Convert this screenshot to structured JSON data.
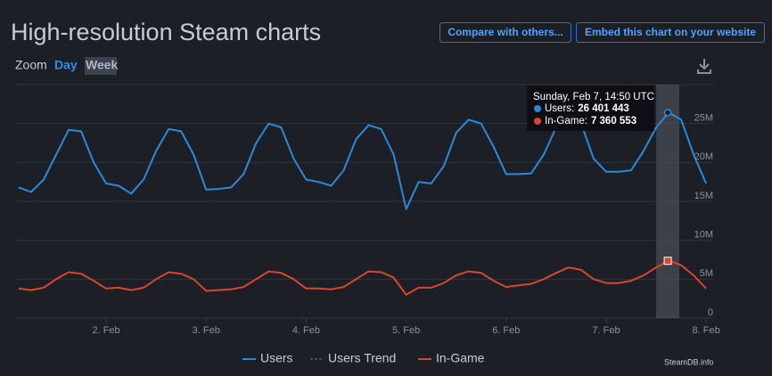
{
  "header": {
    "title": "High-resolution Steam charts",
    "buttons": [
      "Compare with others...",
      "Embed this chart on your website"
    ]
  },
  "zoom": {
    "label": "Zoom",
    "options": [
      "Day",
      "Week"
    ]
  },
  "credit": "SteamDB.info",
  "chart_data": {
    "type": "line",
    "x": [
      1.125,
      1.25,
      1.375,
      1.5,
      1.625,
      1.75,
      1.875,
      2.0,
      2.125,
      2.25,
      2.375,
      2.5,
      2.625,
      2.75,
      2.875,
      3.0,
      3.125,
      3.25,
      3.375,
      3.5,
      3.625,
      3.75,
      3.875,
      4.0,
      4.125,
      4.25,
      4.375,
      4.5,
      4.625,
      4.75,
      4.875,
      5.0,
      5.125,
      5.25,
      5.375,
      5.5,
      5.625,
      5.75,
      5.875,
      6.0,
      6.125,
      6.25,
      6.375,
      6.5,
      6.625,
      6.75,
      6.875,
      7.0,
      7.125,
      7.25,
      7.375,
      7.5,
      7.625,
      7.75,
      7.875,
      8.0
    ],
    "series": [
      {
        "name": "Users",
        "color": "#2a8ad9",
        "values": [
          16800000,
          16200000,
          17800000,
          21000000,
          24200000,
          24000000,
          20000000,
          17300000,
          17000000,
          16000000,
          17800000,
          21500000,
          24300000,
          24000000,
          21000000,
          16500000,
          16600000,
          16800000,
          18500000,
          22500000,
          25000000,
          24500000,
          20500000,
          17800000,
          17500000,
          17000000,
          19000000,
          23000000,
          24800000,
          24300000,
          21000000,
          14000000,
          17500000,
          17300000,
          19500000,
          23800000,
          25500000,
          25000000,
          22000000,
          18500000,
          18500000,
          18600000,
          21000000,
          24500000,
          26200000,
          25000000,
          20500000,
          18800000,
          18800000,
          19000000,
          21500000,
          24500000,
          26400000,
          25500000,
          21000000,
          17300000
        ]
      },
      {
        "name": "Users Trend",
        "color": "#6b7380",
        "dash": true,
        "visible": false
      },
      {
        "name": "In-Game",
        "color": "#d9462a",
        "values": [
          3800000,
          3600000,
          3900000,
          5000000,
          5900000,
          5700000,
          4800000,
          3800000,
          3900000,
          3600000,
          3900000,
          5000000,
          5900000,
          5700000,
          5000000,
          3500000,
          3600000,
          3700000,
          4000000,
          5000000,
          6000000,
          5800000,
          5000000,
          3800000,
          3800000,
          3700000,
          4000000,
          5000000,
          6000000,
          5900000,
          5200000,
          3000000,
          3900000,
          3900000,
          4500000,
          5500000,
          6000000,
          5800000,
          4800000,
          4000000,
          4200000,
          4400000,
          5000000,
          5800000,
          6500000,
          6200000,
          5000000,
          4500000,
          4500000,
          4800000,
          5500000,
          6500000,
          7400000,
          6800000,
          5500000,
          3800000
        ]
      }
    ],
    "xlim": [
      1.09,
      8.07
    ],
    "xticks": [
      {
        "value": 2,
        "label": "2. Feb"
      },
      {
        "value": 3,
        "label": "3. Feb"
      },
      {
        "value": 4,
        "label": "4. Feb"
      },
      {
        "value": 5,
        "label": "5. Feb"
      },
      {
        "value": 6,
        "label": "6. Feb"
      },
      {
        "value": 7,
        "label": "7. Feb"
      },
      {
        "value": 8,
        "label": "8. Feb"
      }
    ],
    "ylim": [
      0,
      30000000
    ],
    "yticks": [
      0,
      {
        "value": 5000000,
        "label": "5M"
      },
      {
        "value": 10000000,
        "label": "10M"
      },
      {
        "value": 15000000,
        "label": "15M"
      },
      {
        "value": 20000000,
        "label": "20M"
      },
      {
        "value": 25000000,
        "label": "25M"
      }
    ],
    "grid": true,
    "tooltip": {
      "x": 7.616,
      "title": "Sunday, Feb 7, 14:50 UTC",
      "rows": [
        {
          "label": "Users:",
          "value": 26401443,
          "value_label": "26 401 443"
        },
        {
          "label": "In-Game:",
          "value": 7360553,
          "value_label": "7 360 553"
        }
      ]
    }
  }
}
